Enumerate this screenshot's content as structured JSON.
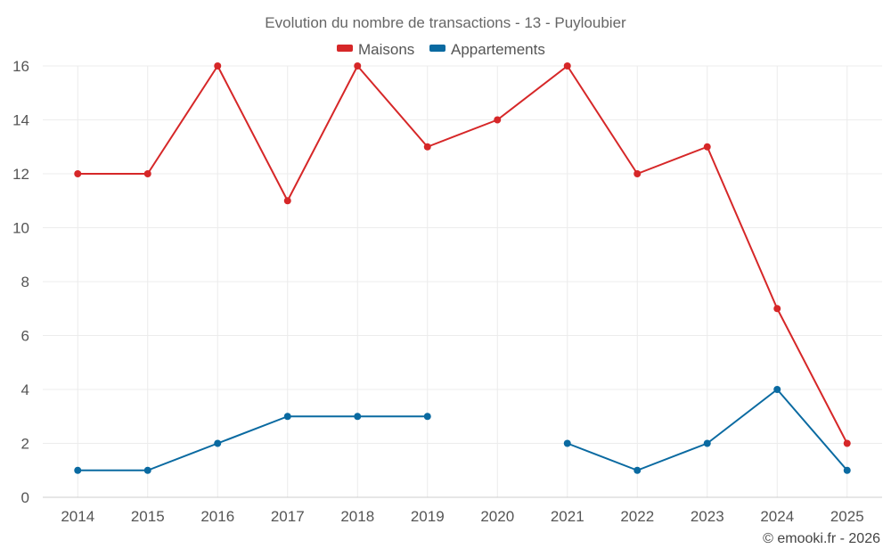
{
  "chart_data": {
    "type": "line",
    "title": "Evolution du nombre de transactions - 13 - Puyloubier",
    "categories": [
      "2014",
      "2015",
      "2016",
      "2017",
      "2018",
      "2019",
      "2020",
      "2021",
      "2022",
      "2023",
      "2024",
      "2025"
    ],
    "ylim": [
      0,
      16
    ],
    "yticks": [
      0,
      2,
      4,
      6,
      8,
      10,
      12,
      14,
      16
    ],
    "legend_position": "top-center",
    "grid": true,
    "series": [
      {
        "name": "Maisons",
        "color": "#d62728",
        "values": [
          12,
          12,
          16,
          11,
          16,
          13,
          14,
          16,
          12,
          13,
          7,
          2
        ]
      },
      {
        "name": "Appartements",
        "color": "#0a6aa1",
        "values": [
          1,
          1,
          2,
          3,
          3,
          3,
          null,
          2,
          1,
          2,
          4,
          1
        ]
      }
    ]
  },
  "credit": "© emooki.fr - 2026"
}
